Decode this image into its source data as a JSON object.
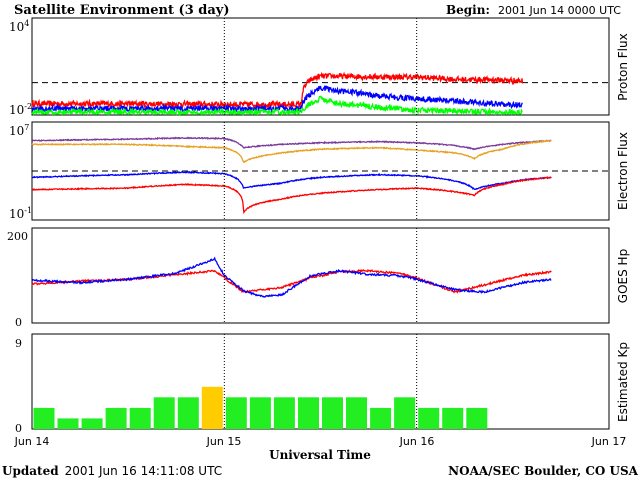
{
  "header": {
    "title": "Satellite Environment (3 day)",
    "begin_label": "Begin:",
    "begin_value": "2001 Jun 14 0000 UTC"
  },
  "footer": {
    "updated_label": "Updated",
    "updated_value": "2001 Jun 16 14:11:08 UTC",
    "credit": "NOAA/SEC Boulder, CO USA"
  },
  "x_axis": {
    "title": "Universal Time",
    "ticks": [
      "Jun 14",
      "Jun 15",
      "Jun 16",
      "Jun 17"
    ]
  },
  "colors": {
    "red": "#ff0000",
    "blue": "#0000ff",
    "green": "#00ff00",
    "purple": "#7b3b9b",
    "orange": "#e8a020",
    "kp_green": "#22ee22",
    "kp_yellow": "#ffcc00"
  },
  "chart_data": [
    {
      "type": "line",
      "name": "proton",
      "ylabel": "Proton Flux",
      "scale": "log",
      "ylim_exp": [
        -2,
        4
      ],
      "tick_labels": [
        {
          "base": "10",
          "exp": "4"
        },
        {
          "base": "10",
          "exp": "-2"
        }
      ],
      "threshold": 1,
      "x_days": [
        0,
        0.5,
        1.0,
        1.4,
        1.45,
        1.5,
        1.6,
        1.8,
        2.0,
        2.2,
        2.4,
        2.55
      ],
      "series": [
        {
          "color": "red",
          "values": [
            0.05,
            0.05,
            0.045,
            0.045,
            1.5,
            2.5,
            2.5,
            2.3,
            2.2,
            1.6,
            1.5,
            1.3
          ]
        },
        {
          "color": "blue",
          "values": [
            0.025,
            0.025,
            0.025,
            0.025,
            0.2,
            0.5,
            0.3,
            0.15,
            0.1,
            0.07,
            0.05,
            0.04
          ]
        },
        {
          "color": "green",
          "values": [
            0.015,
            0.015,
            0.015,
            0.015,
            0.05,
            0.1,
            0.05,
            0.03,
            0.02,
            0.018,
            0.015,
            0.014
          ]
        }
      ]
    },
    {
      "type": "line",
      "name": "electron",
      "ylabel": "Electron Flux",
      "scale": "log",
      "ylim_exp": [
        -1,
        7
      ],
      "tick_labels": [
        {
          "base": "10",
          "exp": "7"
        },
        {
          "base": "10",
          "exp": "-1"
        }
      ],
      "threshold": 1000,
      "x_days": [
        0,
        0.5,
        0.8,
        1.0,
        1.1,
        1.3,
        1.5,
        1.8,
        2.0,
        2.2,
        2.3,
        2.45,
        2.7
      ],
      "series": [
        {
          "color": "purple",
          "values": [
            300000,
            400000,
            500000,
            450000,
            80000,
            150000,
            200000,
            250000,
            200000,
            120000,
            60000,
            150000,
            300000
          ]
        },
        {
          "color": "orange",
          "values": [
            150000,
            150000,
            100000,
            80000,
            5000,
            30000,
            60000,
            80000,
            50000,
            30000,
            10000,
            60000,
            300000
          ]
        },
        {
          "color": "blue",
          "values": [
            300,
            500,
            800,
            600,
            40,
            100,
            300,
            500,
            400,
            150,
            30,
            100,
            300
          ]
        },
        {
          "color": "red",
          "values": [
            30,
            40,
            80,
            60,
            0.4,
            5,
            15,
            30,
            40,
            20,
            10,
            80,
            300
          ]
        }
      ]
    },
    {
      "type": "line",
      "name": "goes_hp",
      "ylabel": "GOES Hp",
      "scale": "linear",
      "ylim": [
        0,
        200
      ],
      "tick_labels": [
        "200",
        "0"
      ],
      "x_days": [
        0,
        0.25,
        0.5,
        0.75,
        0.95,
        1.0,
        1.1,
        1.2,
        1.3,
        1.45,
        1.6,
        1.75,
        1.9,
        2.0,
        2.2,
        2.35,
        2.55,
        2.7
      ],
      "series": [
        {
          "color": "red",
          "values": [
            82,
            88,
            92,
            102,
            110,
            95,
            65,
            70,
            75,
            95,
            108,
            110,
            105,
            95,
            65,
            80,
            100,
            108
          ]
        },
        {
          "color": "blue",
          "values": [
            90,
            85,
            92,
            105,
            135,
            100,
            68,
            55,
            60,
            100,
            110,
            102,
            100,
            92,
            70,
            65,
            85,
            92
          ]
        }
      ]
    },
    {
      "type": "bar",
      "name": "kp",
      "ylabel": "Estimated Kp",
      "ylim": [
        0,
        9
      ],
      "tick_labels": [
        "9",
        "0"
      ],
      "values": [
        2,
        1,
        1,
        2,
        2,
        3,
        3,
        4,
        3,
        3,
        3,
        3,
        3,
        3,
        2,
        3,
        2,
        2,
        2
      ]
    }
  ]
}
